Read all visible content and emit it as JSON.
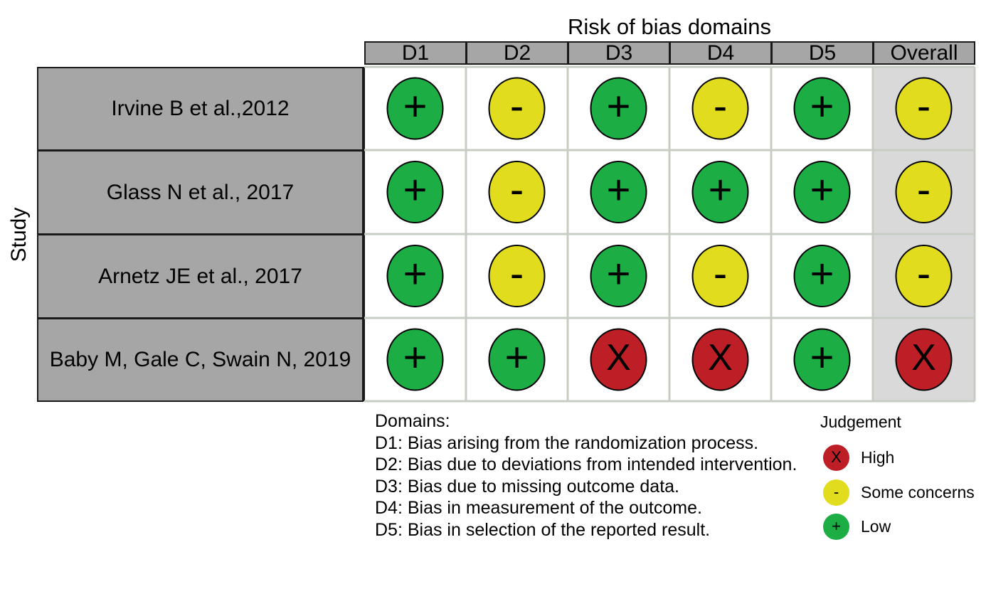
{
  "chart_data": {
    "type": "table",
    "title": "Risk of bias domains",
    "ylabel": "Study",
    "columns": [
      "D1",
      "D2",
      "D3",
      "D4",
      "D5",
      "Overall"
    ],
    "rows": [
      {
        "study": "Irvine B et al.,2012",
        "judgements": [
          "Low",
          "Some concerns",
          "Low",
          "Some concerns",
          "Low",
          "Some concerns"
        ]
      },
      {
        "study": "Glass N et al., 2017",
        "judgements": [
          "Low",
          "Some concerns",
          "Low",
          "Low",
          "Low",
          "Some concerns"
        ]
      },
      {
        "study": "Arnetz JE et al., 2017",
        "judgements": [
          "Low",
          "Some concerns",
          "Low",
          "Some concerns",
          "Low",
          "Some concerns"
        ]
      },
      {
        "study": "Baby M, Gale C, Swain N, 2019",
        "judgements": [
          "Low",
          "Low",
          "High",
          "High",
          "Low",
          "High"
        ]
      }
    ],
    "legend": {
      "title": "Judgement",
      "placement": "bottom-right",
      "items": [
        {
          "label": "High",
          "symbol": "X",
          "color": "#be1e25"
        },
        {
          "label": "Some concerns",
          "symbol": "-",
          "color": "#e1dc1d"
        },
        {
          "label": "Low",
          "symbol": "+",
          "color": "#1cae45"
        }
      ]
    },
    "domains_title": "Domains:",
    "domains": [
      "D1: Bias arising from the randomization process.",
      "D2: Bias due to deviations from intended intervention.",
      "D3: Bias due to missing outcome data.",
      "D4: Bias in measurement of the outcome.",
      "D5: Bias in selection of the reported result."
    ]
  },
  "colors": {
    "header_fill": "#a6a6a6",
    "overall_fill": "#d9d9d9",
    "grid_line": "#c8cdc4"
  }
}
